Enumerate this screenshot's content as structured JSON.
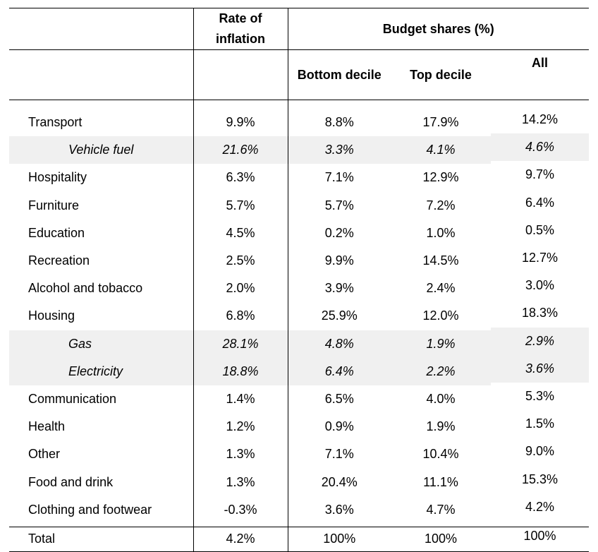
{
  "headers": {
    "rate": "Rate of inflation",
    "budget": "Budget shares (%)",
    "bottom": "Bottom decile",
    "top": "Top decile",
    "all": "All"
  },
  "rows": [
    {
      "label": "Transport",
      "rate": "9.9%",
      "bottom": "8.8%",
      "top": "17.9%",
      "all": "14.2%",
      "sub": false
    },
    {
      "label": "Vehicle fuel",
      "rate": "21.6%",
      "bottom": "3.3%",
      "top": "4.1%",
      "all": "4.6%",
      "sub": true
    },
    {
      "label": "Hospitality",
      "rate": "6.3%",
      "bottom": "7.1%",
      "top": "12.9%",
      "all": "9.7%",
      "sub": false
    },
    {
      "label": "Furniture",
      "rate": "5.7%",
      "bottom": "5.7%",
      "top": "7.2%",
      "all": "6.4%",
      "sub": false
    },
    {
      "label": "Education",
      "rate": "4.5%",
      "bottom": "0.2%",
      "top": "1.0%",
      "all": "0.5%",
      "sub": false
    },
    {
      "label": "Recreation",
      "rate": "2.5%",
      "bottom": "9.9%",
      "top": "14.5%",
      "all": "12.7%",
      "sub": false
    },
    {
      "label": "Alcohol and tobacco",
      "rate": "2.0%",
      "bottom": "3.9%",
      "top": "2.4%",
      "all": "3.0%",
      "sub": false
    },
    {
      "label": "Housing",
      "rate": "6.8%",
      "bottom": "25.9%",
      "top": "12.0%",
      "all": "18.3%",
      "sub": false
    },
    {
      "label": "Gas",
      "rate": "28.1%",
      "bottom": "4.8%",
      "top": "1.9%",
      "all": "2.9%",
      "sub": true
    },
    {
      "label": "Electricity",
      "rate": "18.8%",
      "bottom": "6.4%",
      "top": "2.2%",
      "all": "3.6%",
      "sub": true
    },
    {
      "label": "Communication",
      "rate": "1.4%",
      "bottom": "6.5%",
      "top": "4.0%",
      "all": "5.3%",
      "sub": false
    },
    {
      "label": "Health",
      "rate": "1.2%",
      "bottom": "0.9%",
      "top": "1.9%",
      "all": "1.5%",
      "sub": false
    },
    {
      "label": "Other",
      "rate": "1.3%",
      "bottom": "7.1%",
      "top": "10.4%",
      "all": "9.0%",
      "sub": false
    },
    {
      "label": "Food and drink",
      "rate": "1.3%",
      "bottom": "20.4%",
      "top": "11.1%",
      "all": "15.3%",
      "sub": false
    },
    {
      "label": "Clothing and footwear",
      "rate": "-0.3%",
      "bottom": "3.6%",
      "top": "4.7%",
      "all": "4.2%",
      "sub": false
    }
  ],
  "total": {
    "label": "Total",
    "rate": "4.2%",
    "bottom": "100%",
    "top": "100%",
    "all": "100%"
  }
}
